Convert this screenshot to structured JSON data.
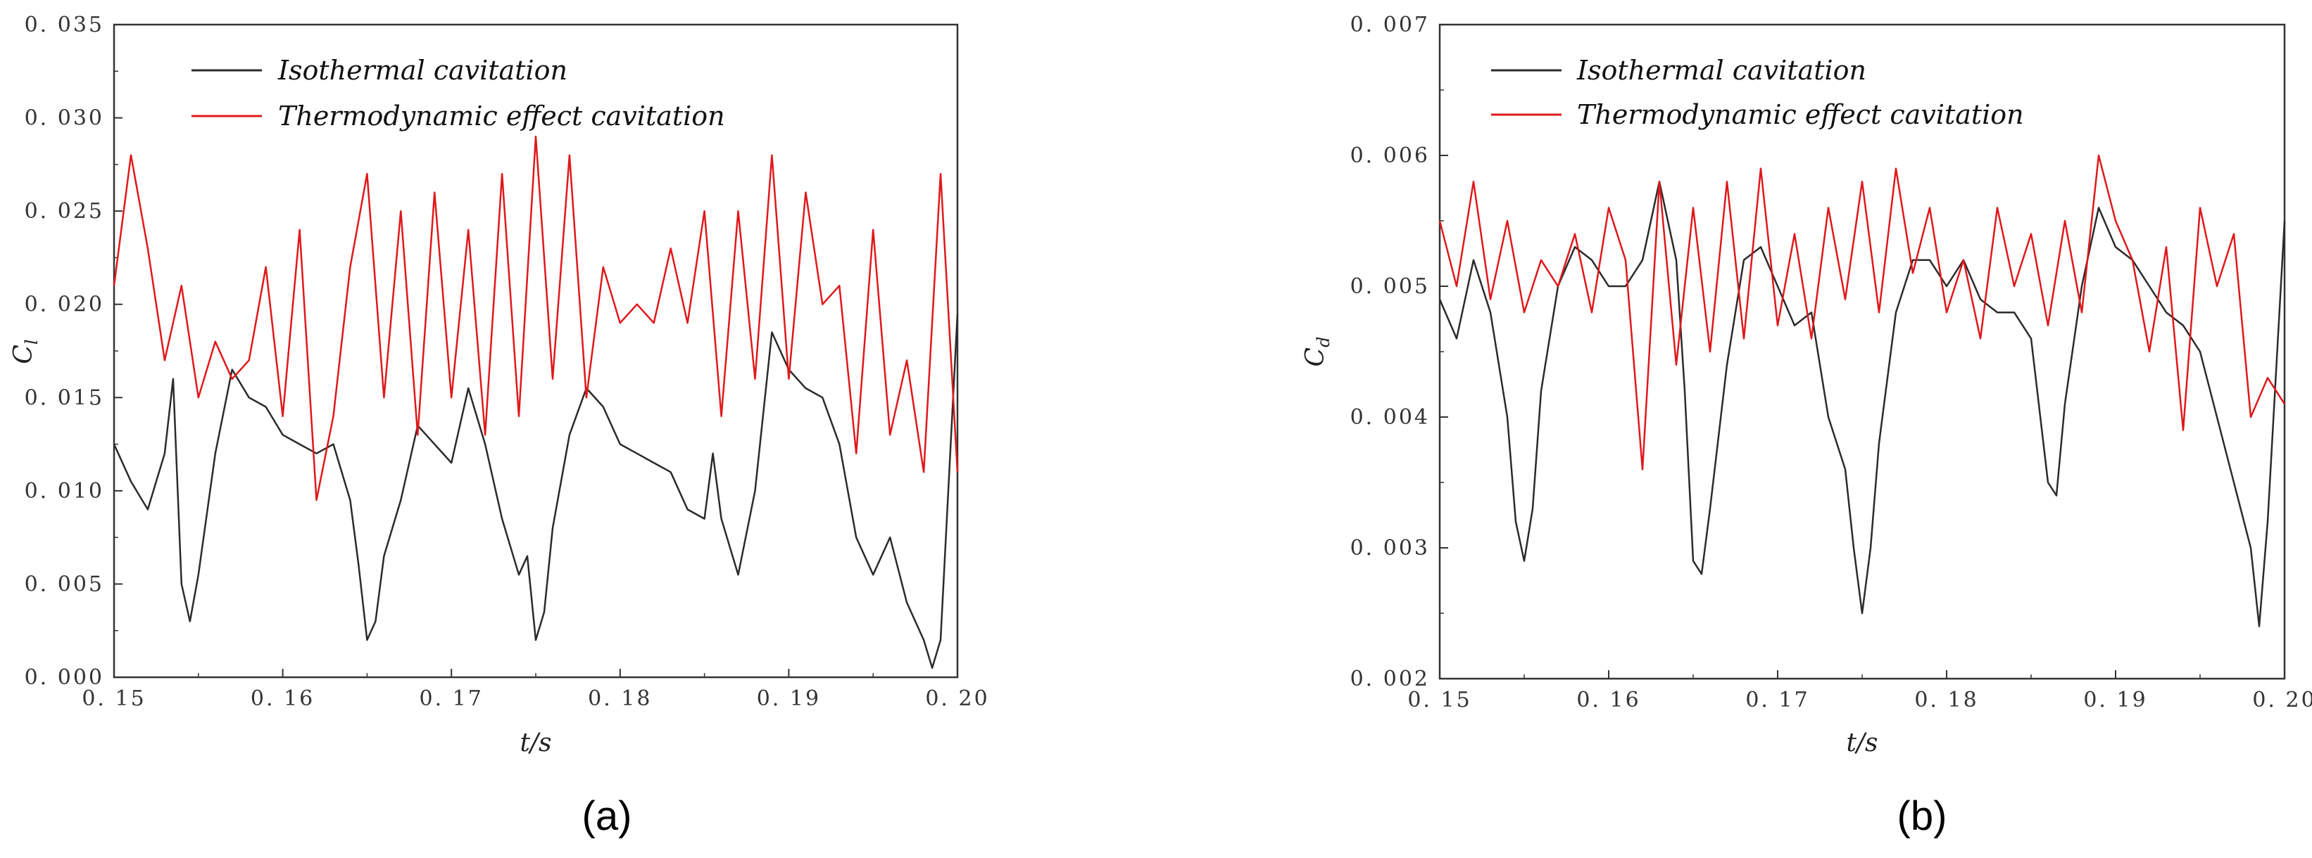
{
  "colors": {
    "isothermal": "#2b2b2b",
    "thermodynamic": "#e0181b",
    "frame": "#333333"
  },
  "chart_data": [
    {
      "type": "line",
      "panel_label": "(a)",
      "xlabel": "t/s",
      "ylabel": "C",
      "ylabel_sub": "l",
      "xlim": [
        0.15,
        0.2
      ],
      "ylim": [
        0.0,
        0.035
      ],
      "xticks": [
        0.15,
        0.16,
        0.17,
        0.18,
        0.19,
        0.2
      ],
      "xtick_labels": [
        "0. 15",
        "0. 16",
        "0. 17",
        "0. 18",
        "0. 19",
        "0. 20"
      ],
      "yticks": [
        0.0,
        0.005,
        0.01,
        0.015,
        0.02,
        0.025,
        0.03,
        0.035
      ],
      "ytick_labels": [
        "0. 000",
        "0. 005",
        "0. 010",
        "0. 015",
        "0. 020",
        "0. 025",
        "0. 030",
        "0. 035"
      ],
      "legend_position": "top-left",
      "grid": false,
      "series": [
        {
          "name": "Isothermal cavitation",
          "color": "#2b2b2b",
          "x": [
            0.15,
            0.151,
            0.152,
            0.153,
            0.1535,
            0.154,
            0.1545,
            0.155,
            0.156,
            0.157,
            0.158,
            0.159,
            0.16,
            0.161,
            0.162,
            0.163,
            0.164,
            0.1645,
            0.165,
            0.1655,
            0.166,
            0.167,
            0.168,
            0.169,
            0.17,
            0.171,
            0.172,
            0.173,
            0.174,
            0.1745,
            0.175,
            0.1755,
            0.176,
            0.177,
            0.178,
            0.179,
            0.18,
            0.181,
            0.182,
            0.183,
            0.184,
            0.185,
            0.1855,
            0.186,
            0.187,
            0.188,
            0.189,
            0.19,
            0.191,
            0.192,
            0.193,
            0.194,
            0.195,
            0.196,
            0.197,
            0.198,
            0.1985,
            0.199,
            0.2
          ],
          "y": [
            0.0125,
            0.0105,
            0.009,
            0.012,
            0.016,
            0.005,
            0.003,
            0.0055,
            0.012,
            0.0165,
            0.015,
            0.0145,
            0.013,
            0.0125,
            0.012,
            0.0125,
            0.0095,
            0.006,
            0.002,
            0.003,
            0.0065,
            0.0095,
            0.0135,
            0.0125,
            0.0115,
            0.0155,
            0.0125,
            0.0085,
            0.0055,
            0.0065,
            0.002,
            0.0035,
            0.008,
            0.013,
            0.0155,
            0.0145,
            0.0125,
            0.012,
            0.0115,
            0.011,
            0.009,
            0.0085,
            0.012,
            0.0085,
            0.0055,
            0.01,
            0.0185,
            0.0165,
            0.0155,
            0.015,
            0.0125,
            0.0075,
            0.0055,
            0.0075,
            0.004,
            0.002,
            0.0005,
            0.002,
            0.0195
          ]
        },
        {
          "name": "Thermodynamic effect cavitation",
          "color": "#e0181b",
          "x": [
            0.15,
            0.151,
            0.152,
            0.153,
            0.154,
            0.155,
            0.156,
            0.157,
            0.158,
            0.159,
            0.16,
            0.161,
            0.162,
            0.163,
            0.164,
            0.165,
            0.166,
            0.167,
            0.168,
            0.169,
            0.17,
            0.171,
            0.172,
            0.173,
            0.174,
            0.175,
            0.176,
            0.177,
            0.178,
            0.179,
            0.18,
            0.181,
            0.182,
            0.183,
            0.184,
            0.185,
            0.186,
            0.187,
            0.188,
            0.189,
            0.19,
            0.191,
            0.192,
            0.193,
            0.194,
            0.195,
            0.196,
            0.197,
            0.198,
            0.199,
            0.2
          ],
          "y": [
            0.021,
            0.028,
            0.023,
            0.017,
            0.021,
            0.015,
            0.018,
            0.016,
            0.017,
            0.022,
            0.014,
            0.024,
            0.0095,
            0.014,
            0.022,
            0.027,
            0.015,
            0.025,
            0.013,
            0.026,
            0.015,
            0.024,
            0.013,
            0.027,
            0.014,
            0.029,
            0.016,
            0.028,
            0.015,
            0.022,
            0.019,
            0.02,
            0.019,
            0.023,
            0.019,
            0.025,
            0.014,
            0.025,
            0.016,
            0.028,
            0.016,
            0.026,
            0.02,
            0.021,
            0.012,
            0.024,
            0.013,
            0.017,
            0.011,
            0.027,
            0.011
          ]
        }
      ]
    },
    {
      "type": "line",
      "panel_label": "(b)",
      "xlabel": "t/s",
      "ylabel": "C",
      "ylabel_sub": "d",
      "xlim": [
        0.15,
        0.2
      ],
      "ylim": [
        0.002,
        0.007
      ],
      "xticks": [
        0.15,
        0.16,
        0.17,
        0.18,
        0.19,
        0.2
      ],
      "xtick_labels": [
        "0. 15",
        "0. 16",
        "0. 17",
        "0. 18",
        "0. 19",
        "0. 20"
      ],
      "yticks": [
        0.002,
        0.003,
        0.004,
        0.005,
        0.006,
        0.007
      ],
      "ytick_labels": [
        "0. 002",
        "0. 003",
        "0. 004",
        "0. 005",
        "0. 006",
        "0. 007"
      ],
      "legend_position": "top-left",
      "grid": false,
      "series": [
        {
          "name": "Isothermal cavitation",
          "color": "#2b2b2b",
          "x": [
            0.15,
            0.151,
            0.152,
            0.153,
            0.154,
            0.1545,
            0.155,
            0.1555,
            0.156,
            0.157,
            0.158,
            0.159,
            0.16,
            0.161,
            0.162,
            0.163,
            0.164,
            0.1645,
            0.165,
            0.1655,
            0.166,
            0.167,
            0.168,
            0.169,
            0.17,
            0.171,
            0.172,
            0.173,
            0.174,
            0.1745,
            0.175,
            0.1755,
            0.176,
            0.177,
            0.178,
            0.179,
            0.18,
            0.181,
            0.182,
            0.183,
            0.184,
            0.185,
            0.186,
            0.1865,
            0.187,
            0.188,
            0.189,
            0.19,
            0.191,
            0.192,
            0.193,
            0.194,
            0.195,
            0.196,
            0.197,
            0.198,
            0.1985,
            0.199,
            0.2
          ],
          "y": [
            0.0049,
            0.0046,
            0.0052,
            0.0048,
            0.004,
            0.0032,
            0.0029,
            0.0033,
            0.0042,
            0.005,
            0.0053,
            0.0052,
            0.005,
            0.005,
            0.0052,
            0.0058,
            0.0052,
            0.0042,
            0.0029,
            0.0028,
            0.0033,
            0.0044,
            0.0052,
            0.0053,
            0.005,
            0.0047,
            0.0048,
            0.004,
            0.0036,
            0.003,
            0.0025,
            0.003,
            0.0038,
            0.0048,
            0.0052,
            0.0052,
            0.005,
            0.0052,
            0.0049,
            0.0048,
            0.0048,
            0.0046,
            0.0035,
            0.0034,
            0.0041,
            0.005,
            0.0056,
            0.0053,
            0.0052,
            0.005,
            0.0048,
            0.0047,
            0.0045,
            0.004,
            0.0035,
            0.003,
            0.0024,
            0.0032,
            0.0055
          ]
        },
        {
          "name": "Thermodynamic effect cavitation",
          "color": "#e0181b",
          "x": [
            0.15,
            0.151,
            0.152,
            0.153,
            0.154,
            0.155,
            0.156,
            0.157,
            0.158,
            0.159,
            0.16,
            0.161,
            0.162,
            0.163,
            0.164,
            0.165,
            0.166,
            0.167,
            0.168,
            0.169,
            0.17,
            0.171,
            0.172,
            0.173,
            0.174,
            0.175,
            0.176,
            0.177,
            0.178,
            0.179,
            0.18,
            0.181,
            0.182,
            0.183,
            0.184,
            0.185,
            0.186,
            0.187,
            0.188,
            0.189,
            0.19,
            0.191,
            0.192,
            0.193,
            0.194,
            0.195,
            0.196,
            0.197,
            0.198,
            0.199,
            0.2
          ],
          "y": [
            0.0055,
            0.005,
            0.0058,
            0.0049,
            0.0055,
            0.0048,
            0.0052,
            0.005,
            0.0054,
            0.0048,
            0.0056,
            0.0052,
            0.0036,
            0.0058,
            0.0044,
            0.0056,
            0.0045,
            0.0058,
            0.0046,
            0.0059,
            0.0047,
            0.0054,
            0.0046,
            0.0056,
            0.0049,
            0.0058,
            0.0048,
            0.0059,
            0.0051,
            0.0056,
            0.0048,
            0.0052,
            0.0046,
            0.0056,
            0.005,
            0.0054,
            0.0047,
            0.0055,
            0.0048,
            0.006,
            0.0055,
            0.0052,
            0.0045,
            0.0053,
            0.0039,
            0.0056,
            0.005,
            0.0054,
            0.004,
            0.0043,
            0.0041
          ]
        }
      ]
    }
  ]
}
